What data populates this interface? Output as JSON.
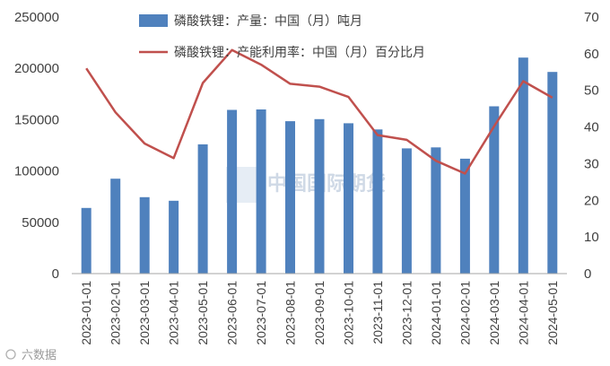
{
  "chart_data": {
    "type": "bar",
    "categories": [
      "2023-01-01",
      "2023-02-01",
      "2023-03-01",
      "2023-04-01",
      "2023-05-01",
      "2023-06-01",
      "2023-07-01",
      "2023-08-01",
      "2023-09-01",
      "2023-10-01",
      "2023-11-01",
      "2023-12-01",
      "2024-01-01",
      "2024-02-01",
      "2024-03-01",
      "2024-04-01",
      "2024-05-01"
    ],
    "series": [
      {
        "name": "磷酸铁锂：产量：中国（月）吨月",
        "type": "bar",
        "axis": "left",
        "color": "#4f81bd",
        "values": [
          64000,
          92500,
          74500,
          71000,
          126000,
          159500,
          160000,
          148500,
          150500,
          146500,
          140500,
          122000,
          123000,
          112000,
          163000,
          210500,
          196500
        ]
      },
      {
        "name": "磷酸铁锂：产能利用率：中国（月）百分比月",
        "type": "line",
        "axis": "right",
        "color": "#c0504d",
        "values": [
          56,
          44,
          35.5,
          31.5,
          52,
          61,
          57,
          51.8,
          51,
          48.2,
          37.8,
          36.5,
          30.8,
          27.3,
          40.2,
          52.5,
          48
        ]
      }
    ],
    "ylim_left": [
      0,
      250000
    ],
    "yticks_left": [
      0,
      50000,
      100000,
      150000,
      200000,
      250000
    ],
    "ylim_right": [
      0,
      70
    ],
    "yticks_right": [
      0,
      10,
      20,
      30,
      40,
      50,
      60,
      70
    ],
    "grid": false,
    "legend_position": "top"
  },
  "watermark": "中国国际期货",
  "footer": "六数据"
}
